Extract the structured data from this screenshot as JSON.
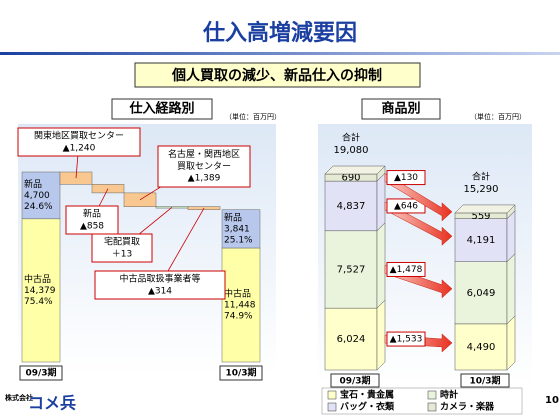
{
  "header": {
    "title": "仕入高増減要因",
    "subtitle": "個人買取の減少、新品仕入の抑制"
  },
  "footer": {
    "company_prefix": "株式会社",
    "company": "コメ兵",
    "page": "10"
  },
  "chart_data": [
    {
      "type": "waterfall",
      "title": "仕入経路別",
      "unit": "（単位：百万円）",
      "categories": [
        "09/3期",
        "10/3期"
      ],
      "series": [
        {
          "name": "中古品",
          "color": "#ffffa8",
          "values": [
            14379,
            11448
          ],
          "value_labels": [
            "14,379",
            "11,448"
          ],
          "shares": [
            75.4,
            74.9
          ],
          "share_labels": [
            "75.4%",
            "74.9%"
          ]
        },
        {
          "name": "新品",
          "color": "#b8c8ec",
          "values": [
            4700,
            3841
          ],
          "value_labels": [
            "4,700",
            "3,841"
          ],
          "shares": [
            24.6,
            25.1
          ],
          "share_labels": [
            "24.6%",
            "25.1%"
          ]
        }
      ],
      "steps": [
        {
          "name": "関東地区買取センター",
          "value": -1240,
          "value_label": "▲1,240",
          "color": "#f8c890"
        },
        {
          "name": "新品",
          "value": -858,
          "value_label": "▲858",
          "color": "#f8c890"
        },
        {
          "name": "名古屋・関西地区買取センター",
          "value": -1389,
          "value_label": "▲1,389",
          "color": "#f8c890"
        },
        {
          "name": "宅配買取",
          "value": 13,
          "value_label": "＋13",
          "color": "#c8e8c0"
        },
        {
          "name": "中古品取扱事業者等",
          "value": -314,
          "value_label": "▲314",
          "color": "#f8c890"
        }
      ]
    },
    {
      "type": "bar",
      "stacked": true,
      "title": "商品別",
      "unit": "（単位：百万円）",
      "categories": [
        "09/3期",
        "10/3期"
      ],
      "series": [
        {
          "name": "宝石・貴金属",
          "color": "#ffffcc",
          "values": [
            6024,
            4490
          ],
          "value_labels": [
            "6,024",
            "4,490"
          ]
        },
        {
          "name": "時計",
          "color": "#eaf4dc",
          "values": [
            7527,
            6049
          ],
          "value_labels": [
            "7,527",
            "6,049"
          ]
        },
        {
          "name": "バッグ・衣類",
          "color": "#e2e2f6",
          "values": [
            4837,
            4191
          ],
          "value_labels": [
            "4,837",
            "4,191"
          ]
        },
        {
          "name": "カメラ・楽器",
          "color": "#e4ead4",
          "values": [
            690,
            559
          ],
          "value_labels": [
            "690",
            "559"
          ]
        }
      ],
      "total_title": "合計",
      "totals": [
        19080,
        15290
      ],
      "total_labels": [
        "19,080",
        "15,290"
      ],
      "changes": [
        {
          "value": -1533,
          "label": "▲1,533"
        },
        {
          "value": -1478,
          "label": "▲1,478"
        },
        {
          "value": -646,
          "label": "▲646"
        },
        {
          "value": -130,
          "label": "▲130"
        }
      ]
    }
  ]
}
